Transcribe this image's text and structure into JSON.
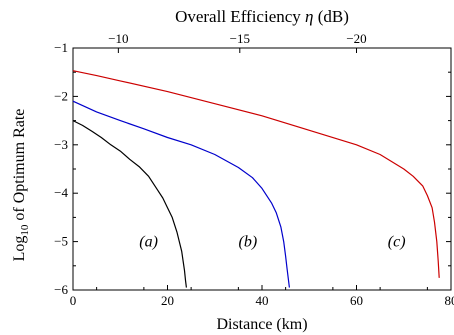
{
  "chart_data": {
    "type": "line",
    "top_axis_label": "Overall Efficiency",
    "top_axis_symbol": "η",
    "top_axis_unit": "(dB)",
    "xlabel": "Distance (km)",
    "ylabel_prefix": "Log",
    "ylabel_sub": "10",
    "ylabel_suffix": " of Optimum Rate",
    "xlim": [
      0,
      80
    ],
    "ylim": [
      -6,
      -1
    ],
    "x_ticks": [
      0,
      20,
      40,
      60,
      80
    ],
    "y_ticks": [
      -1,
      -2,
      -3,
      -4,
      -5,
      -6
    ],
    "top_ticks": [
      {
        "label": "−10",
        "x_km": 9.6
      },
      {
        "label": "−15",
        "x_km": 35.3
      },
      {
        "label": "−20",
        "x_km": 60.0
      }
    ],
    "series": [
      {
        "label": "(a)",
        "color": "#000000",
        "x": [
          0,
          2,
          4,
          6,
          8,
          10,
          12,
          14,
          16,
          18,
          19,
          20,
          21,
          22,
          22.5,
          23,
          23.3,
          23.6,
          23.8,
          24.0
        ],
        "y": [
          -2.5,
          -2.6,
          -2.72,
          -2.85,
          -3.0,
          -3.13,
          -3.3,
          -3.45,
          -3.65,
          -3.95,
          -4.1,
          -4.3,
          -4.5,
          -4.8,
          -5.0,
          -5.2,
          -5.4,
          -5.6,
          -5.8,
          -5.95
        ]
      },
      {
        "label": "(b)",
        "color": "#0000cc",
        "x": [
          0,
          5,
          10,
          15,
          20,
          25,
          30,
          35,
          38,
          40,
          42,
          43,
          44,
          44.6,
          45,
          45.3,
          45.6,
          45.8
        ],
        "y": [
          -2.1,
          -2.32,
          -2.5,
          -2.67,
          -2.85,
          -3.0,
          -3.2,
          -3.47,
          -3.68,
          -3.9,
          -4.2,
          -4.4,
          -4.7,
          -5.0,
          -5.3,
          -5.55,
          -5.8,
          -5.95
        ]
      },
      {
        "label": "(c)",
        "color": "#cc0000",
        "x": [
          0,
          5,
          10,
          20,
          30,
          40,
          50,
          60,
          65,
          70,
          72,
          74,
          75,
          76,
          76.5,
          77,
          77.3,
          77.5
        ],
        "y": [
          -1.47,
          -1.57,
          -1.68,
          -1.9,
          -2.15,
          -2.4,
          -2.7,
          -3.0,
          -3.2,
          -3.5,
          -3.65,
          -3.85,
          -4.05,
          -4.3,
          -4.6,
          -5.0,
          -5.4,
          -5.75
        ]
      }
    ],
    "series_labels": [
      {
        "text": "(a)",
        "x_km": 16,
        "y": -5.0
      },
      {
        "text": "(b)",
        "x_km": 37,
        "y": -5.0
      },
      {
        "text": "(c)",
        "x_km": 68.5,
        "y": -5.0
      }
    ]
  }
}
